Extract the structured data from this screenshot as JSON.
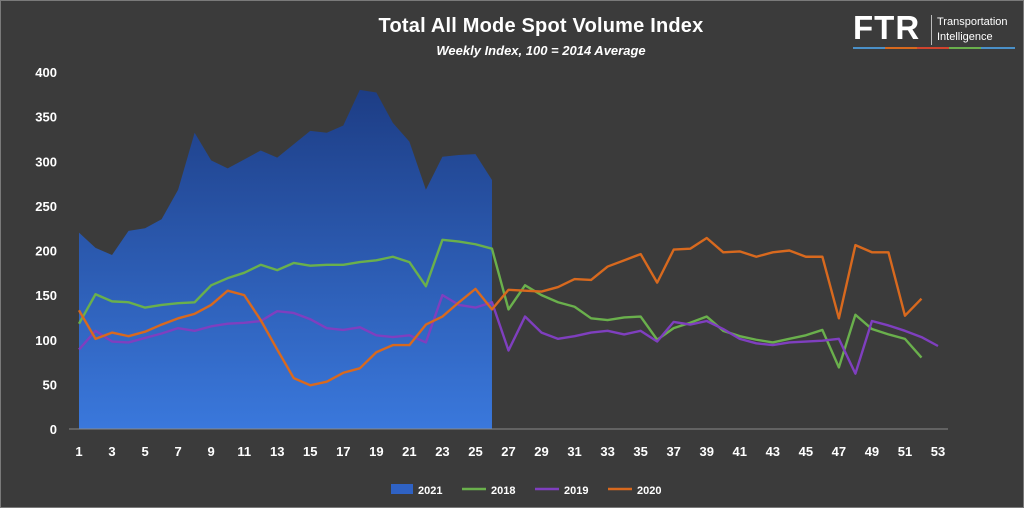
{
  "chart_data": {
    "type": "line",
    "title": "Total All Mode Spot Volume Index",
    "subtitle": "Weekly Index, 100 = 2014 Average",
    "xlabel": "",
    "ylabel": "",
    "xlim": [
      1,
      53
    ],
    "ylim": [
      0,
      400
    ],
    "yticks": [
      0,
      50,
      100,
      150,
      200,
      250,
      300,
      350,
      400
    ],
    "xticks": [
      1,
      3,
      5,
      7,
      9,
      11,
      13,
      15,
      17,
      19,
      21,
      23,
      25,
      27,
      29,
      31,
      33,
      35,
      37,
      39,
      41,
      43,
      45,
      47,
      49,
      51,
      53
    ],
    "grid": false,
    "legend_position": "bottom",
    "series": [
      {
        "name": "2021",
        "style": "area",
        "color": "#2f62c4",
        "x": [
          1,
          2,
          3,
          4,
          5,
          6,
          7,
          8,
          9,
          10,
          11,
          12,
          13,
          14,
          15,
          16,
          17,
          18,
          19,
          20,
          21,
          22,
          23,
          24,
          25,
          26
        ],
        "values": [
          220,
          203,
          195,
          222,
          225,
          235,
          268,
          332,
          301,
          292,
          302,
          312,
          304,
          319,
          334,
          332,
          340,
          380,
          377,
          343,
          322,
          268,
          305,
          307,
          308,
          279
        ]
      },
      {
        "name": "2018",
        "style": "line",
        "color": "#6ab04c",
        "x": [
          1,
          2,
          3,
          4,
          5,
          6,
          7,
          8,
          9,
          10,
          11,
          12,
          13,
          14,
          15,
          16,
          17,
          18,
          19,
          20,
          21,
          22,
          23,
          24,
          25,
          26,
          27,
          28,
          29,
          30,
          31,
          32,
          33,
          34,
          35,
          36,
          37,
          38,
          39,
          40,
          41,
          42,
          43,
          44,
          45,
          46,
          47,
          48,
          49,
          50,
          51,
          52
        ],
        "values": [
          118,
          151,
          143,
          142,
          136,
          139,
          141,
          142,
          161,
          169,
          175,
          184,
          178,
          186,
          183,
          184,
          184,
          187,
          189,
          193,
          187,
          160,
          212,
          210,
          207,
          202,
          134,
          161,
          150,
          142,
          137,
          124,
          122,
          125,
          126,
          100,
          113,
          119,
          126,
          110,
          104,
          100,
          97,
          101,
          105,
          111,
          69,
          128,
          112,
          106,
          101,
          80
        ]
      },
      {
        "name": "2019",
        "style": "line",
        "color": "#7f3fbf",
        "x": [
          1,
          2,
          3,
          4,
          5,
          6,
          7,
          8,
          9,
          10,
          11,
          12,
          13,
          14,
          15,
          16,
          17,
          18,
          19,
          20,
          21,
          22,
          23,
          24,
          25,
          26,
          27,
          28,
          29,
          30,
          31,
          32,
          33,
          34,
          35,
          36,
          37,
          38,
          39,
          40,
          41,
          42,
          43,
          44,
          45,
          46,
          47,
          48,
          49,
          50,
          51,
          52,
          53
        ],
        "values": [
          89,
          110,
          98,
          97,
          102,
          107,
          113,
          110,
          115,
          118,
          119,
          121,
          132,
          130,
          123,
          113,
          111,
          114,
          105,
          103,
          105,
          97,
          150,
          139,
          136,
          142,
          88,
          126,
          108,
          101,
          104,
          108,
          110,
          106,
          110,
          98,
          120,
          117,
          121,
          112,
          101,
          96,
          94,
          97,
          98,
          99,
          101,
          62,
          121,
          116,
          110,
          103,
          93
        ]
      },
      {
        "name": "2020",
        "style": "line",
        "color": "#d8691e",
        "x": [
          1,
          2,
          3,
          4,
          5,
          6,
          7,
          8,
          9,
          10,
          11,
          12,
          13,
          14,
          15,
          16,
          17,
          18,
          19,
          20,
          21,
          22,
          23,
          24,
          25,
          26,
          27,
          28,
          29,
          30,
          31,
          32,
          33,
          34,
          35,
          36,
          37,
          38,
          39,
          40,
          41,
          42,
          43,
          44,
          45,
          46,
          47,
          48,
          49,
          50,
          51,
          52
        ],
        "values": [
          133,
          101,
          108,
          104,
          109,
          117,
          124,
          129,
          139,
          155,
          150,
          122,
          89,
          57,
          49,
          53,
          63,
          68,
          86,
          94,
          94,
          117,
          126,
          142,
          157,
          134,
          156,
          155,
          154,
          159,
          168,
          167,
          182,
          189,
          196,
          164,
          201,
          202,
          214,
          198,
          199,
          193,
          198,
          200,
          193,
          193,
          124,
          206,
          198,
          198,
          127,
          146
        ]
      }
    ],
    "legend_order": [
      "2021",
      "2018",
      "2019",
      "2020"
    ]
  },
  "logo": {
    "word": "FTR",
    "sub_line1": "Transportation",
    "sub_line2": "Intelligence",
    "stripe_colors": [
      "#4a90c8",
      "#d8691e",
      "#d0442e",
      "#6ab04c",
      "#4a90c8"
    ]
  }
}
